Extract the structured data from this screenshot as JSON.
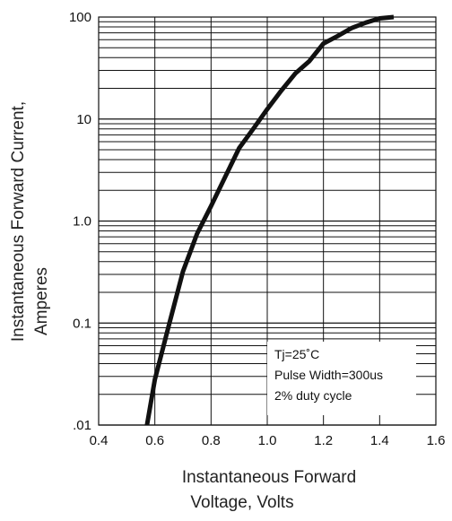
{
  "chart_data": {
    "type": "line",
    "xlabel_lines": [
      "Instantaneous Forward",
      "Voltage, Volts"
    ],
    "ylabel_lines": [
      "Instantaneous Forward Current,",
      "Amperes"
    ],
    "x_ticks": [
      0.4,
      0.6,
      0.8,
      1.0,
      1.2,
      1.4,
      1.6
    ],
    "x_tick_labels": [
      "0.4",
      "0.6",
      "0.8",
      "1.0",
      "1.2",
      "1.4",
      "1.6"
    ],
    "y_ticks": [
      0.01,
      0.1,
      1,
      10,
      100
    ],
    "y_tick_labels": [
      ".01",
      "0.1",
      "1.0",
      "10",
      "100"
    ],
    "xlim": [
      0.4,
      1.6
    ],
    "ylim": [
      0.01,
      100
    ],
    "y_scale": "log",
    "grid": true,
    "annotation_lines": [
      "Tj=25˚C",
      "Pulse Width=300us",
      "2% duty cycle"
    ],
    "series": [
      {
        "color": "#111111",
        "points": [
          [
            0.572,
            0.01
          ],
          [
            0.6,
            0.028
          ],
          [
            0.65,
            0.095
          ],
          [
            0.7,
            0.32
          ],
          [
            0.75,
            0.75
          ],
          [
            0.8,
            1.4
          ],
          [
            0.85,
            2.7
          ],
          [
            0.9,
            5.2
          ],
          [
            0.95,
            8.0
          ],
          [
            1.0,
            12.5
          ],
          [
            1.05,
            19
          ],
          [
            1.1,
            28
          ],
          [
            1.15,
            37
          ],
          [
            1.2,
            55
          ],
          [
            1.25,
            65
          ],
          [
            1.3,
            78
          ],
          [
            1.35,
            88
          ],
          [
            1.4,
            97
          ],
          [
            1.45,
            100
          ]
        ]
      }
    ]
  }
}
